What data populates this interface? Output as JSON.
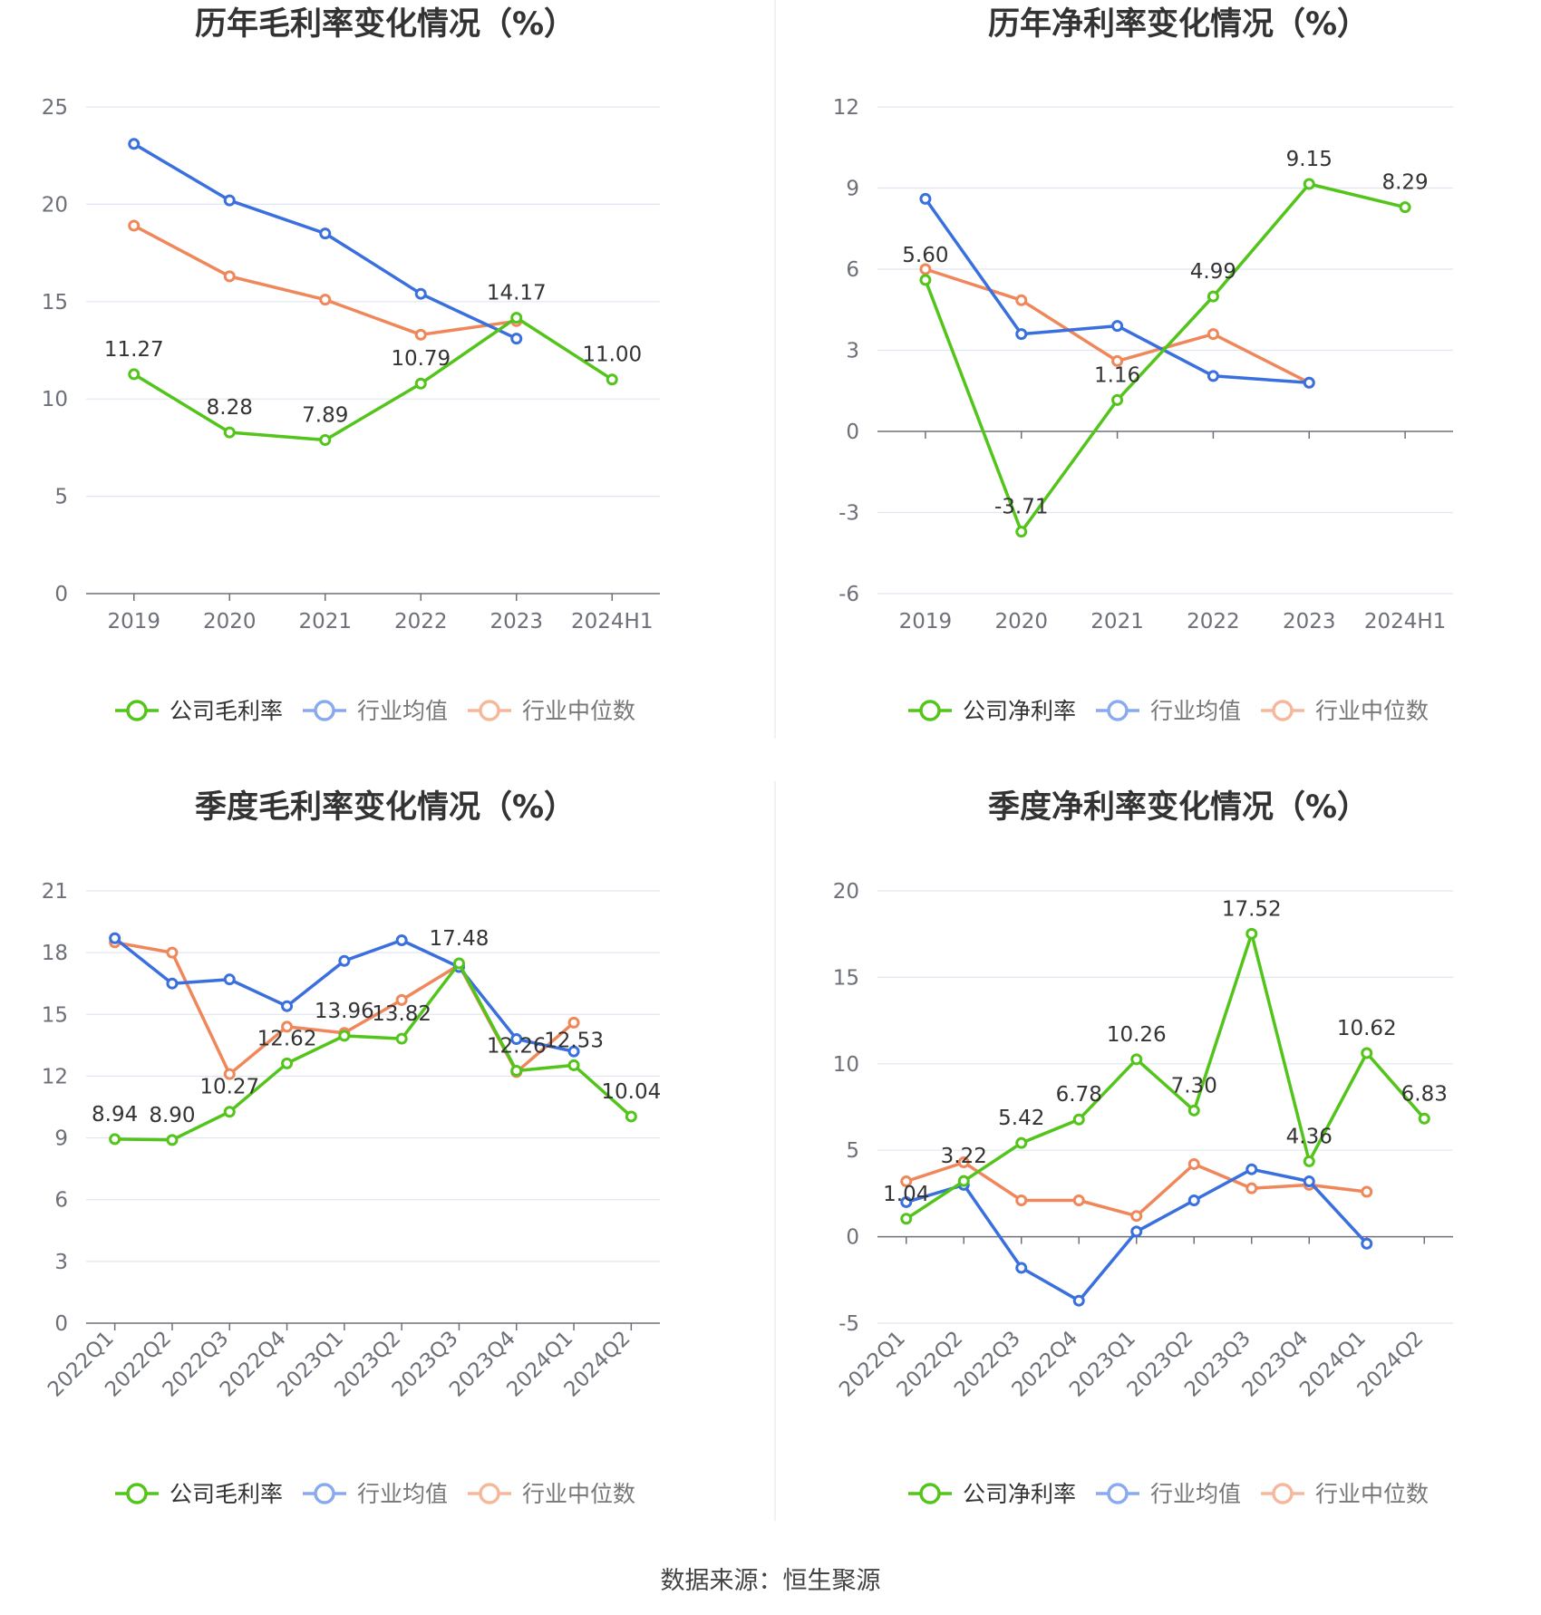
{
  "source": "数据来源：恒生聚源",
  "colors": {
    "company": "#52c41a",
    "avg": "#3a6fde",
    "median": "#f0875a"
  },
  "chart_data": [
    {
      "type": "line",
      "title": "历年毛利率变化情况（%）",
      "categories": [
        "2019",
        "2020",
        "2021",
        "2022",
        "2023",
        "2024H1"
      ],
      "ylim": [
        0,
        25
      ],
      "yticks": [
        0,
        5,
        10,
        15,
        20,
        25
      ],
      "series": [
        {
          "name": "公司毛利率",
          "values": [
            11.27,
            8.28,
            7.89,
            10.79,
            14.17,
            11.0
          ],
          "labels": [
            "11.27",
            "8.28",
            "7.89",
            "10.79",
            "14.17",
            "11.00"
          ]
        },
        {
          "name": "行业均值",
          "values": [
            23.1,
            20.2,
            18.5,
            15.4,
            13.1,
            null
          ]
        },
        {
          "name": "行业中位数",
          "values": [
            18.9,
            16.3,
            15.1,
            13.3,
            14.0,
            null
          ]
        }
      ],
      "legend_position": "bottom"
    },
    {
      "type": "line",
      "title": "历年净利率变化情况（%）",
      "categories": [
        "2019",
        "2020",
        "2021",
        "2022",
        "2023",
        "2024H1"
      ],
      "ylim": [
        -6,
        12
      ],
      "yticks": [
        -6,
        -3,
        0,
        3,
        6,
        9,
        12
      ],
      "series": [
        {
          "name": "公司净利率",
          "values": [
            5.6,
            -3.71,
            1.16,
            4.99,
            9.15,
            8.29
          ],
          "labels": [
            "5.60",
            "-3.71",
            "1.16",
            "4.99",
            "9.15",
            "8.29"
          ]
        },
        {
          "name": "行业均值",
          "values": [
            8.6,
            3.6,
            3.9,
            2.05,
            1.8,
            null
          ]
        },
        {
          "name": "行业中位数",
          "values": [
            6.0,
            4.85,
            2.6,
            3.6,
            1.8,
            null
          ]
        }
      ],
      "legend_position": "bottom"
    },
    {
      "type": "line",
      "title": "季度毛利率变化情况（%）",
      "categories": [
        "2022Q1",
        "2022Q2",
        "2022Q3",
        "2022Q4",
        "2023Q1",
        "2023Q2",
        "2023Q3",
        "2023Q4",
        "2024Q1",
        "2024Q2"
      ],
      "ylim": [
        0,
        21
      ],
      "yticks": [
        0,
        3,
        6,
        9,
        12,
        15,
        18,
        21
      ],
      "series": [
        {
          "name": "公司毛利率",
          "values": [
            8.94,
            8.9,
            10.27,
            12.62,
            13.96,
            13.82,
            17.48,
            12.26,
            12.53,
            10.04
          ],
          "labels": [
            "8.94",
            "8.90",
            "10.27",
            "12.62",
            "13.96",
            "13.82",
            "17.48",
            "12.26",
            "12.53",
            "10.04"
          ]
        },
        {
          "name": "行业均值",
          "values": [
            18.7,
            16.5,
            16.7,
            15.4,
            17.6,
            18.6,
            17.3,
            13.8,
            13.2,
            null
          ]
        },
        {
          "name": "行业中位数",
          "values": [
            18.5,
            18.0,
            12.1,
            14.4,
            14.1,
            15.7,
            17.4,
            12.2,
            14.6,
            null
          ]
        }
      ],
      "legend_position": "bottom"
    },
    {
      "type": "line",
      "title": "季度净利率变化情况（%）",
      "categories": [
        "2022Q1",
        "2022Q2",
        "2022Q3",
        "2022Q4",
        "2023Q1",
        "2023Q2",
        "2023Q3",
        "2023Q4",
        "2024Q1",
        "2024Q2"
      ],
      "ylim": [
        -5,
        20
      ],
      "yticks": [
        -5,
        0,
        5,
        10,
        15,
        20
      ],
      "series": [
        {
          "name": "公司净利率",
          "values": [
            1.04,
            3.22,
            5.42,
            6.78,
            10.26,
            7.3,
            17.52,
            4.36,
            10.62,
            6.83
          ],
          "labels": [
            "1.04",
            "3.22",
            "5.42",
            "6.78",
            "10.26",
            "7.30",
            "17.52",
            "4.36",
            "10.62",
            "6.83"
          ]
        },
        {
          "name": "行业均值",
          "values": [
            2.0,
            3.0,
            -1.8,
            -3.7,
            0.3,
            2.1,
            3.9,
            3.2,
            -0.4,
            null
          ]
        },
        {
          "name": "行业中位数",
          "values": [
            3.2,
            4.3,
            2.1,
            2.1,
            1.2,
            4.2,
            2.8,
            3.0,
            2.6,
            null
          ]
        }
      ],
      "legend_position": "bottom"
    }
  ]
}
